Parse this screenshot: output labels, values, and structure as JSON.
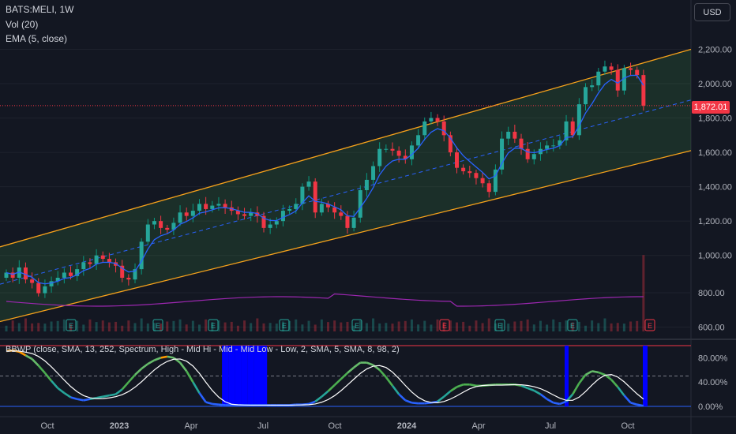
{
  "legend": {
    "symbol": "BATS:MELI, 1W",
    "volume": "Vol (20)",
    "ema": "EMA (5, close)",
    "osc": "BBWP (close, SMA, 13, 252, Spectrum, High - Mid Hi - Mid - Mid Low - Low, 2, SMA, 5, SMA, 8, 98, 2)"
  },
  "currency_button": "USD",
  "last_price": "1,872.01",
  "colors": {
    "background": "#131722",
    "up": "#26a69a",
    "down": "#f23645",
    "channel": "#f7a21b",
    "midline": "#2962ff",
    "ema": "#2962ff",
    "osc_line": "#ffffff",
    "extreme": "#0000ff"
  },
  "events": [
    "E",
    "E",
    "E",
    "E",
    "E",
    "E",
    "E",
    "E",
    "E"
  ],
  "chart_data": [
    {
      "type": "candlestick",
      "title": "BATS:MELI, 1W",
      "y_ticks": [
        "2,200.00",
        "2,000.00",
        "1,800.00",
        "1,600.00",
        "1,400.00",
        "1,200.00",
        "1,000.00",
        "800.00",
        "600.00"
      ],
      "y_range": [
        575,
        2290
      ],
      "x_ticks": [
        "Oct",
        "2023",
        "Apr",
        "Jul",
        "Oct",
        "2024",
        "Apr",
        "Jul",
        "Oct"
      ],
      "close": [
        900,
        870,
        930,
        860,
        840,
        780,
        820,
        850,
        870,
        900,
        880,
        920,
        960,
        950,
        1000,
        980,
        960,
        940,
        870,
        860,
        920,
        1080,
        1180,
        1200,
        1160,
        1150,
        1190,
        1250,
        1230,
        1260,
        1300,
        1270,
        1290,
        1300,
        1280,
        1260,
        1240,
        1230,
        1250,
        1230,
        1160,
        1180,
        1200,
        1260,
        1270,
        1300,
        1400,
        1430,
        1250,
        1300,
        1280,
        1250,
        1230,
        1160,
        1220,
        1380,
        1440,
        1520,
        1620,
        1620,
        1610,
        1580,
        1560,
        1640,
        1700,
        1780,
        1800,
        1780,
        1700,
        1600,
        1510,
        1490,
        1480,
        1450,
        1420,
        1370,
        1500,
        1680,
        1720,
        1680,
        1620,
        1560,
        1590,
        1620,
        1640,
        1640,
        1670,
        1780,
        1700,
        1880,
        1980,
        1990,
        2070,
        2100,
        2080,
        1960,
        2090,
        2080,
        2050,
        1872
      ],
      "ema_label": "EMA (5, close)",
      "volume_label": "Vol (20)",
      "channel": {
        "upper": [
          [
            0,
            1050
          ],
          [
            99,
            2200
          ]
        ],
        "lower": [
          [
            0,
            615
          ],
          [
            99,
            1610
          ]
        ]
      }
    },
    {
      "type": "line",
      "name": "BBWP",
      "y_ticks": [
        "80.00%",
        "40.00%",
        "0.00%"
      ],
      "y_range": [
        0,
        100
      ],
      "values": [
        91,
        92,
        90,
        84,
        78,
        67,
        55,
        42,
        30,
        22,
        15,
        12,
        10,
        12,
        14,
        16,
        18,
        20,
        28,
        40,
        52,
        62,
        70,
        76,
        80,
        82,
        80,
        72,
        58,
        40,
        22,
        7,
        4,
        3,
        2,
        2,
        2,
        2,
        2,
        2,
        2,
        2,
        2,
        2,
        2,
        3,
        3,
        4,
        8,
        16,
        25,
        35,
        45,
        55,
        64,
        72,
        72,
        68,
        60,
        48,
        34,
        20,
        10,
        6,
        5,
        5,
        6,
        8,
        16,
        25,
        32,
        36,
        36,
        34,
        34,
        35,
        36,
        36,
        36,
        36,
        34,
        30,
        26,
        20,
        12,
        6,
        4,
        8,
        20,
        38,
        52,
        58,
        56,
        52,
        44,
        32,
        18,
        6,
        3,
        1
      ]
    }
  ]
}
